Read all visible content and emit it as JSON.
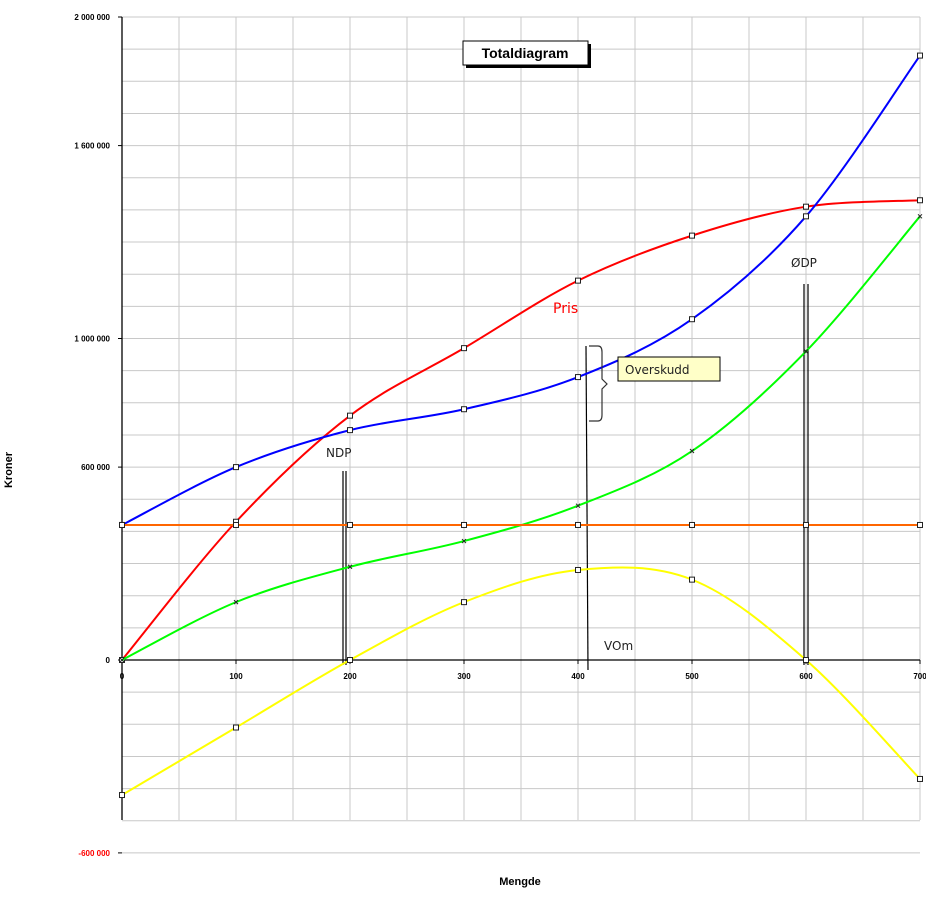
{
  "chart_data": {
    "type": "line",
    "title": "Totaldiagram",
    "xlabel": "Mengde",
    "ylabel": "Kroner",
    "xlim": [
      0,
      700
    ],
    "ylim": [
      -600000,
      2000000
    ],
    "x_ticks": [
      0,
      100,
      200,
      300,
      400,
      500,
      600,
      700
    ],
    "x_tick_labels": [
      "0",
      "100",
      "200",
      "300",
      "400",
      "500",
      "600",
      "700"
    ],
    "y_ticks": [
      -600000,
      0,
      600000,
      1000000,
      1600000,
      2000000
    ],
    "y_tick_labels": [
      "-600 000",
      "0",
      "600 000",
      "1 000 000",
      "1 600 000",
      "2 000 000"
    ],
    "negative_tick_color": "#ff0000",
    "grid": true,
    "legend": "none",
    "series": [
      {
        "color": "#ff0000",
        "marker": "square",
        "x": [
          0,
          100,
          200,
          300,
          400,
          500,
          600,
          700
        ],
        "y": [
          0,
          430000,
          760000,
          970000,
          1180000,
          1320000,
          1410000,
          1430000
        ]
      },
      {
        "color": "#0000ff",
        "x": [
          0,
          100,
          200,
          300,
          400,
          500,
          600,
          700
        ],
        "y": [
          420000,
          600000,
          715000,
          780000,
          880000,
          1060000,
          1380000,
          1880000
        ]
      },
      {
        "color": "#00ff00",
        "marker": "x",
        "x": [
          0,
          100,
          200,
          300,
          400,
          500,
          600,
          700
        ],
        "y": [
          0,
          180000,
          290000,
          370000,
          480000,
          650000,
          960000,
          1380000
        ]
      },
      {
        "color": "#ff6600",
        "x": [
          0,
          100,
          200,
          300,
          400,
          500,
          600,
          700
        ],
        "y": [
          420000,
          420000,
          420000,
          420000,
          420000,
          420000,
          420000,
          420000
        ]
      },
      {
        "color": "#ffff00",
        "marker": "square",
        "x": [
          0,
          100,
          200,
          300,
          400,
          500,
          600,
          700
        ],
        "y": [
          -420000,
          -210000,
          0,
          180000,
          280000,
          250000,
          0,
          -370000
        ]
      }
    ],
    "annotations": [
      {
        "text": "Pris",
        "color": "#ff0000"
      },
      {
        "text": "NDP"
      },
      {
        "text": "ØDP"
      },
      {
        "text": "Overskudd"
      },
      {
        "text": "VOm"
      }
    ]
  }
}
